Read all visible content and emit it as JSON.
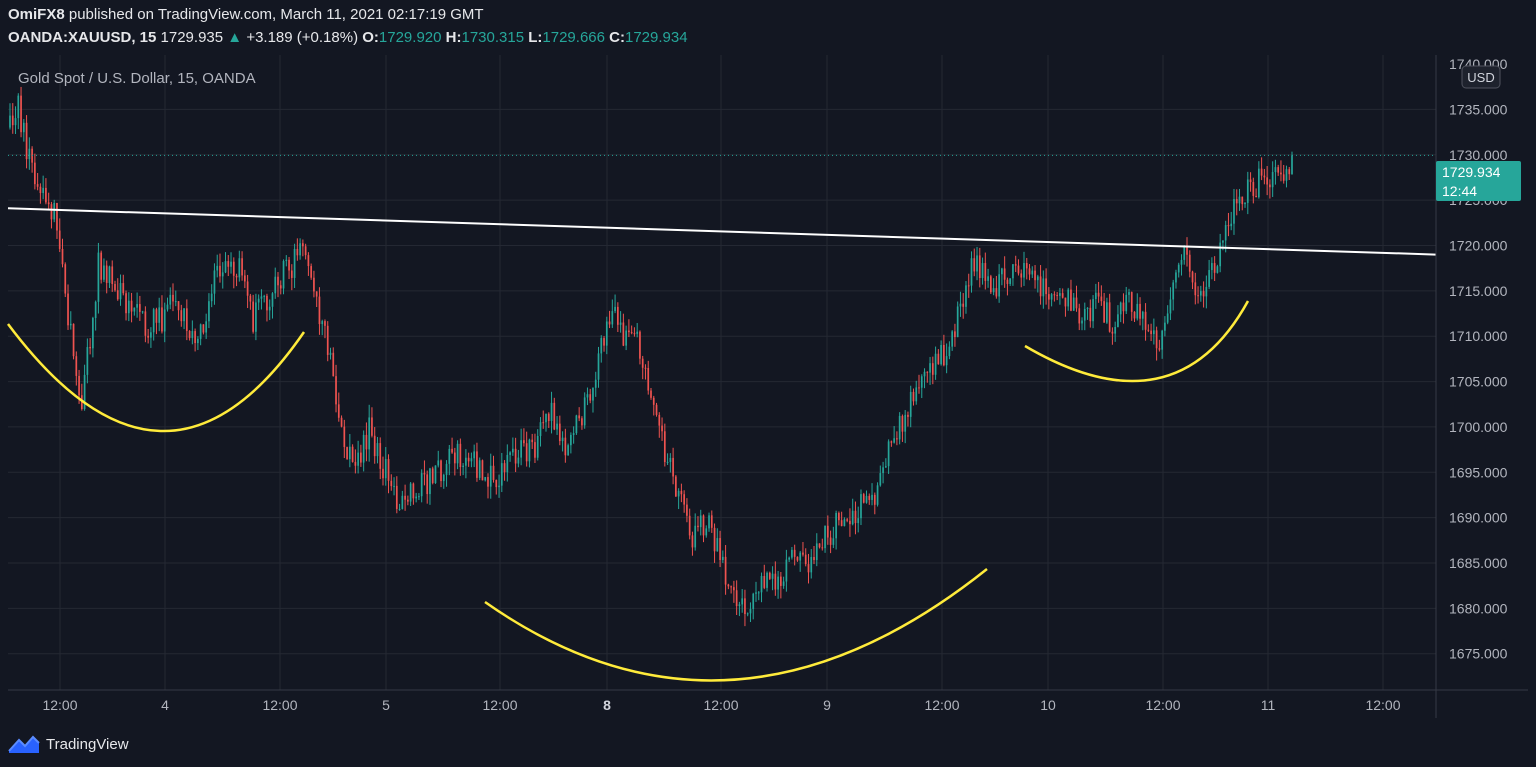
{
  "header": {
    "publisher": "OmiFX8",
    "published_text": "published on TradingView.com, March 11, 2021 02:17:19 GMT",
    "symbol": "OANDA:XAUUSD, 15",
    "last": "1729.935",
    "change_arrow": "▲",
    "change": "+3.189 (+0.18%)",
    "o_label": "O:",
    "o": "1729.920",
    "h_label": "H:",
    "h": "1730.315",
    "l_label": "L:",
    "l": "1729.666",
    "c_label": "C:",
    "c": "1729.934"
  },
  "chart_data": {
    "type": "candlestick",
    "title": "Gold Spot / U.S. Dollar, 15, OANDA",
    "currency": "USD",
    "ylim": [
      1671,
      1741
    ],
    "y_ticks": [
      "1735.000",
      "1730.000",
      "1725.000",
      "1720.000",
      "1715.000",
      "1710.000",
      "1705.000",
      "1700.000",
      "1695.000",
      "1690.000",
      "1685.000",
      "1680.000",
      "1675.000"
    ],
    "y_top_partial": "1740.000",
    "x_ticks": [
      "12:00",
      "4",
      "12:00",
      "5",
      "12:00",
      "8",
      "12:00",
      "9",
      "12:00",
      "10",
      "12:00",
      "11",
      "12:00"
    ],
    "bold_x_ticks": [
      "8"
    ],
    "last_price": "1729.934",
    "countdown": "12:44",
    "path": [
      [
        0,
        1733
      ],
      [
        3,
        1735
      ],
      [
        8,
        1728
      ],
      [
        14,
        1725
      ],
      [
        17,
        1723
      ],
      [
        20,
        1714
      ],
      [
        23,
        1708
      ],
      [
        26,
        1703
      ],
      [
        29,
        1710
      ],
      [
        32,
        1718
      ],
      [
        38,
        1716
      ],
      [
        44,
        1713
      ],
      [
        50,
        1711
      ],
      [
        55,
        1712
      ],
      [
        60,
        1714
      ],
      [
        65,
        1710
      ],
      [
        70,
        1712
      ],
      [
        76,
        1718
      ],
      [
        83,
        1717
      ],
      [
        88,
        1712
      ],
      [
        92,
        1714
      ],
      [
        97,
        1716
      ],
      [
        102,
        1718
      ],
      [
        106,
        1719
      ],
      [
        110,
        1714
      ],
      [
        114,
        1710
      ],
      [
        118,
        1704
      ],
      [
        122,
        1697
      ],
      [
        126,
        1696
      ],
      [
        130,
        1700
      ],
      [
        136,
        1695
      ],
      [
        140,
        1691
      ],
      [
        146,
        1693
      ],
      [
        152,
        1694
      ],
      [
        158,
        1696
      ],
      [
        165,
        1697
      ],
      [
        172,
        1694
      ],
      [
        178,
        1695
      ],
      [
        184,
        1697
      ],
      [
        190,
        1698
      ],
      [
        196,
        1702
      ],
      [
        200,
        1698
      ],
      [
        205,
        1700
      ],
      [
        210,
        1703
      ],
      [
        213,
        1707
      ],
      [
        216,
        1711
      ],
      [
        219,
        1713
      ],
      [
        222,
        1709
      ],
      [
        225,
        1711
      ],
      [
        229,
        1708
      ],
      [
        233,
        1703
      ],
      [
        237,
        1697
      ],
      [
        242,
        1692
      ],
      [
        247,
        1688
      ],
      [
        252,
        1690
      ],
      [
        257,
        1686
      ],
      [
        261,
        1682
      ],
      [
        265,
        1680
      ],
      [
        269,
        1682
      ],
      [
        274,
        1684
      ],
      [
        278,
        1682
      ],
      [
        283,
        1686
      ],
      [
        288,
        1684
      ],
      [
        293,
        1687
      ],
      [
        298,
        1689
      ],
      [
        303,
        1690
      ],
      [
        308,
        1691
      ],
      [
        313,
        1693
      ],
      [
        318,
        1697
      ],
      [
        323,
        1701
      ],
      [
        328,
        1705
      ],
      [
        333,
        1707
      ],
      [
        338,
        1708
      ],
      [
        342,
        1711
      ],
      [
        346,
        1716
      ],
      [
        350,
        1718
      ],
      [
        355,
        1715
      ],
      [
        360,
        1717
      ],
      [
        365,
        1718
      ],
      [
        370,
        1717
      ],
      [
        376,
        1714
      ],
      [
        382,
        1714
      ],
      [
        388,
        1712
      ],
      [
        394,
        1714
      ],
      [
        400,
        1711
      ],
      [
        405,
        1714
      ],
      [
        410,
        1712
      ],
      [
        415,
        1709
      ],
      [
        420,
        1713
      ],
      [
        424,
        1719
      ],
      [
        428,
        1716
      ],
      [
        432,
        1715
      ],
      [
        437,
        1719
      ],
      [
        442,
        1724
      ],
      [
        447,
        1726
      ],
      [
        452,
        1727
      ],
      [
        457,
        1728
      ],
      [
        461,
        1726
      ],
      [
        464,
        1729.9
      ]
    ],
    "n_bars": 465,
    "trendline": [
      [
        1724.1,
        1719.0
      ]
    ],
    "patterns": [
      "left shoulder",
      "head",
      "right shoulder"
    ]
  }
}
